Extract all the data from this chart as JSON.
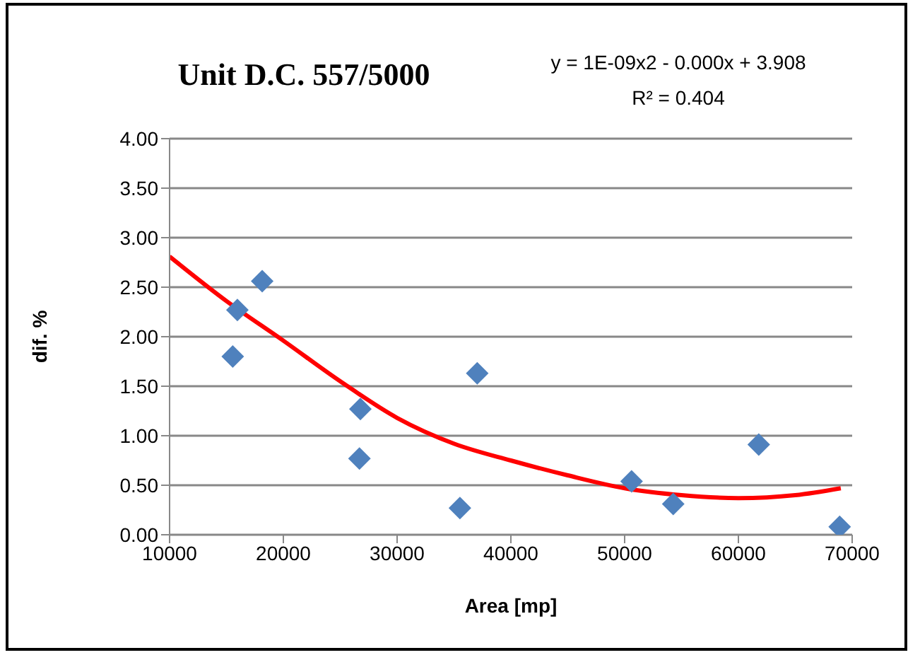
{
  "chart_data": {
    "type": "scatter",
    "title": "Unit D.C. 557/5000",
    "xlabel": "Area [mp]",
    "ylabel": "dif. %",
    "annotations": [
      "y = 1E-09x2 - 0.000x + 3.908",
      "R² = 0.404"
    ],
    "series": [
      {
        "color": "#4f81bd",
        "marker": "diamond",
        "x": [
          15550,
          15960,
          18140,
          26770,
          26690,
          35520,
          37040,
          50610,
          54270,
          61790,
          68900
        ],
        "values": [
          1.8,
          2.27,
          2.56,
          1.27,
          0.77,
          0.27,
          1.63,
          0.54,
          0.31,
          0.91,
          0.08
        ]
      },
      {
        "type": "line",
        "color": "#ff0000",
        "marker": "none",
        "x": [
          10000,
          15000,
          20000,
          25000,
          30000,
          35000,
          40000,
          45000,
          50000,
          55000,
          60000,
          65000,
          69000
        ],
        "values": [
          2.81,
          2.36,
          1.96,
          1.55,
          1.18,
          0.92,
          0.75,
          0.6,
          0.47,
          0.4,
          0.37,
          0.4,
          0.47
        ]
      }
    ],
    "xlim": [
      10000,
      70000
    ],
    "xticks": [
      10000,
      20000,
      30000,
      40000,
      50000,
      60000,
      70000
    ],
    "ylim": [
      0,
      4
    ],
    "yticks": [
      {
        "value": 0,
        "label": "0.00"
      },
      {
        "value": 0.5,
        "label": "0.50"
      },
      {
        "value": 1,
        "label": "1.00"
      },
      {
        "value": 1.5,
        "label": "1.50"
      },
      {
        "value": 2,
        "label": "2.00"
      },
      {
        "value": 2.5,
        "label": "2.50"
      },
      {
        "value": 3,
        "label": "3.00"
      },
      {
        "value": 3.5,
        "label": "3.50"
      },
      {
        "value": 4,
        "label": "4.00"
      }
    ],
    "grid": "y"
  }
}
